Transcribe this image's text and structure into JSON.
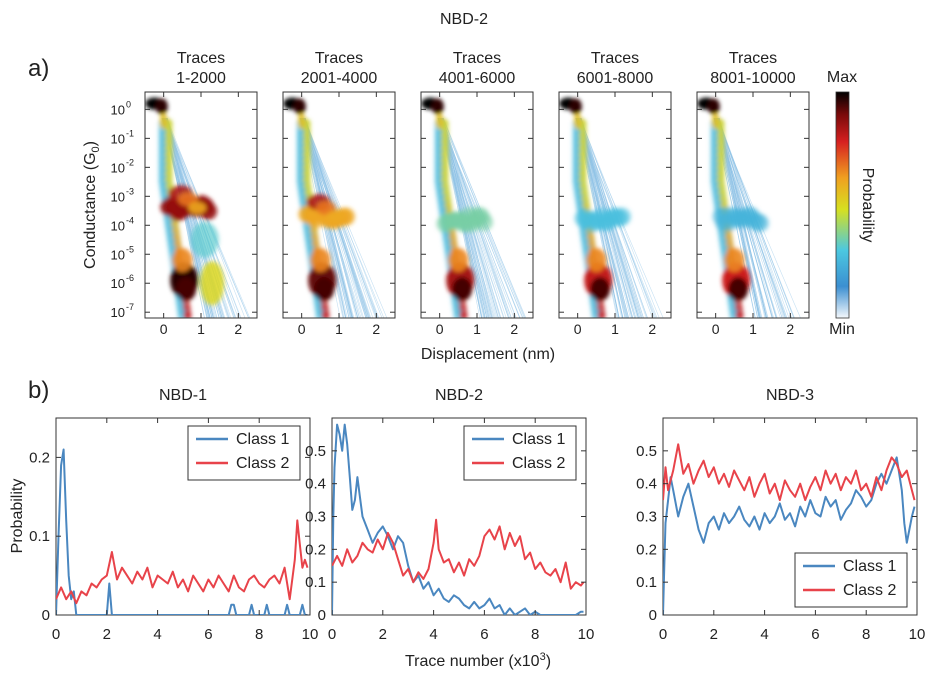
{
  "figure": {
    "top_title": "NBD-2",
    "panel_a_label": "a)",
    "panel_b_label": "b)"
  },
  "chart_data": [
    {
      "type": "heatmap",
      "ylabel_main": "Conductance (G",
      "ylabel_sub": "0",
      "ylabel_end": ")",
      "xlabel": "Displacement (nm)",
      "xlim": [
        -0.5,
        2.5
      ],
      "xticks": [
        "0",
        "1",
        "2"
      ],
      "ylim_log10": [
        -7.2,
        0.6
      ],
      "yticks": [
        {
          "base": "10",
          "exp": "0",
          "v": 0
        },
        {
          "base": "10",
          "exp": "-1",
          "v": -1
        },
        {
          "base": "10",
          "exp": "-2",
          "v": -2
        },
        {
          "base": "10",
          "exp": "-3",
          "v": -3
        },
        {
          "base": "10",
          "exp": "-4",
          "v": -4
        },
        {
          "base": "10",
          "exp": "-5",
          "v": -5
        },
        {
          "base": "10",
          "exp": "-6",
          "v": -6
        },
        {
          "base": "10",
          "exp": "-7",
          "v": -7
        }
      ],
      "colorbar": {
        "label": "Probability",
        "max_label": "Max",
        "min_label": "Min",
        "colors": [
          "#f4f8fc",
          "#3b8fd1",
          "#4cc8e0",
          "#d6e020",
          "#f0a020",
          "#d62020",
          "#7a0a0a",
          "#000000"
        ]
      },
      "panels": [
        {
          "title1": "Traces",
          "title2": "1-2000",
          "plateau_strength": 0.95,
          "plateau_level": -3.4,
          "low_cluster": 0.85
        },
        {
          "title1": "Traces",
          "title2": "2001-4000",
          "plateau_strength": 0.55,
          "plateau_level": -3.7,
          "low_cluster": 0.6
        },
        {
          "title1": "Traces",
          "title2": "4001-6000",
          "plateau_strength": 0.2,
          "plateau_level": -3.8,
          "low_cluster": 0.3
        },
        {
          "title1": "Traces",
          "title2": "6001-8000",
          "plateau_strength": 0.1,
          "plateau_level": -3.8,
          "low_cluster": 0.15
        },
        {
          "title1": "Traces",
          "title2": "8001-10000",
          "plateau_strength": 0.05,
          "plateau_level": -3.8,
          "low_cluster": 0.1
        }
      ]
    },
    {
      "type": "line",
      "title": "NBD-1",
      "ylabel": "Probability",
      "xlabel": "Trace number (x10",
      "xlabel_sup": "3",
      "xlabel_end": ")",
      "xlim": [
        0,
        10
      ],
      "ylim": [
        0,
        0.25
      ],
      "yticks": [
        0,
        0.1,
        0.2
      ],
      "ytick_labels": [
        "0",
        "0.1",
        "0.2"
      ],
      "xticks": [
        0,
        2,
        4,
        6,
        8,
        10
      ],
      "xtick_labels": [
        "0",
        "2",
        "4",
        "6",
        "8",
        "10"
      ],
      "legend_position": "top-right",
      "series": [
        {
          "name": "Class 1",
          "color": "#4a87c0",
          "x": [
            0,
            0.1,
            0.2,
            0.3,
            0.4,
            0.5,
            0.6,
            0.7,
            0.8,
            1.0,
            1.2,
            1.4,
            1.6,
            1.8,
            2.0,
            2.1,
            2.2,
            2.3,
            2.4,
            2.6,
            3.0,
            4.0,
            5.0,
            6.0,
            6.8,
            6.9,
            7.0,
            7.1,
            7.2,
            7.6,
            7.7,
            7.8,
            8.2,
            8.3,
            8.4,
            8.8,
            9.0,
            9.1,
            9.2,
            9.3,
            9.4,
            9.5,
            9.6,
            9.7,
            9.8,
            9.9
          ],
          "y": [
            0.0,
            0.1,
            0.19,
            0.21,
            0.12,
            0.05,
            0.02,
            0.03,
            0.0,
            0.0,
            0.0,
            0.0,
            0.0,
            0.0,
            0.0,
            0.04,
            0.0,
            0.0,
            0.0,
            0.0,
            0.0,
            0.0,
            0.0,
            0.0,
            0.0,
            0.013,
            0.013,
            0.0,
            0.0,
            0.0,
            0.013,
            0.0,
            0.0,
            0.013,
            0.0,
            0.0,
            0.0,
            0.013,
            0.0,
            0.0,
            0.0,
            0.0,
            0.0,
            0.013,
            0.0,
            0.0
          ]
        },
        {
          "name": "Class 2",
          "color": "#e8434a",
          "x": [
            0.0,
            0.2,
            0.4,
            0.6,
            0.8,
            1.0,
            1.2,
            1.4,
            1.6,
            1.8,
            2.0,
            2.2,
            2.4,
            2.6,
            2.8,
            3.0,
            3.2,
            3.4,
            3.6,
            3.8,
            4.0,
            4.2,
            4.4,
            4.6,
            4.8,
            5.0,
            5.2,
            5.4,
            5.6,
            5.8,
            6.0,
            6.2,
            6.4,
            6.6,
            6.8,
            7.0,
            7.2,
            7.4,
            7.6,
            7.8,
            8.0,
            8.2,
            8.4,
            8.6,
            8.8,
            9.0,
            9.2,
            9.4,
            9.5,
            9.6,
            9.7,
            9.8,
            9.9
          ],
          "y": [
            0.02,
            0.035,
            0.02,
            0.03,
            0.015,
            0.03,
            0.025,
            0.04,
            0.035,
            0.045,
            0.05,
            0.08,
            0.045,
            0.06,
            0.05,
            0.04,
            0.055,
            0.045,
            0.06,
            0.035,
            0.05,
            0.045,
            0.04,
            0.055,
            0.035,
            0.045,
            0.03,
            0.05,
            0.04,
            0.03,
            0.045,
            0.035,
            0.05,
            0.04,
            0.03,
            0.05,
            0.035,
            0.03,
            0.045,
            0.05,
            0.04,
            0.035,
            0.045,
            0.05,
            0.04,
            0.06,
            0.02,
            0.07,
            0.12,
            0.09,
            0.06,
            0.07,
            0.06
          ]
        }
      ]
    },
    {
      "type": "line",
      "title": "NBD-2",
      "xlim": [
        0,
        10
      ],
      "ylim": [
        0,
        0.6
      ],
      "yticks": [
        0,
        0.1,
        0.2,
        0.3,
        0.4,
        0.5
      ],
      "ytick_labels": [
        "0",
        "0.1",
        "0.2",
        "0.3",
        "0.4",
        "0.5"
      ],
      "xticks": [
        0,
        2,
        4,
        6,
        8,
        10
      ],
      "xtick_labels": [
        "0",
        "2",
        "4",
        "6",
        "8",
        "10"
      ],
      "legend_position": "top-right",
      "series": [
        {
          "name": "Class 1",
          "color": "#4a87c0",
          "x": [
            0,
            0.05,
            0.1,
            0.2,
            0.3,
            0.4,
            0.5,
            0.6,
            0.7,
            0.8,
            0.9,
            1.0,
            1.1,
            1.2,
            1.4,
            1.6,
            1.8,
            2.0,
            2.2,
            2.4,
            2.6,
            2.8,
            3.0,
            3.2,
            3.4,
            3.6,
            3.8,
            4.0,
            4.2,
            4.4,
            4.6,
            4.8,
            5.0,
            5.2,
            5.4,
            5.6,
            5.8,
            6.0,
            6.2,
            6.4,
            6.6,
            6.8,
            7.0,
            7.2,
            7.4,
            7.6,
            7.8,
            8.0,
            8.2,
            8.4,
            8.6,
            8.8,
            9.0,
            9.2,
            9.4,
            9.6,
            9.8,
            9.9
          ],
          "y": [
            0.0,
            0.3,
            0.45,
            0.58,
            0.55,
            0.5,
            0.58,
            0.52,
            0.42,
            0.32,
            0.35,
            0.42,
            0.36,
            0.3,
            0.26,
            0.22,
            0.25,
            0.27,
            0.24,
            0.2,
            0.24,
            0.22,
            0.15,
            0.1,
            0.12,
            0.08,
            0.1,
            0.06,
            0.08,
            0.05,
            0.04,
            0.06,
            0.05,
            0.03,
            0.02,
            0.04,
            0.02,
            0.03,
            0.05,
            0.02,
            0.03,
            0.0,
            0.02,
            0.0,
            0.01,
            0.02,
            0.0,
            0.01,
            0.0,
            0.0,
            0.0,
            0.0,
            0.0,
            0.0,
            0.0,
            0.0,
            0.01,
            0.01
          ]
        },
        {
          "name": "Class 2",
          "color": "#e8434a",
          "x": [
            0.0,
            0.2,
            0.4,
            0.6,
            0.8,
            1.0,
            1.2,
            1.4,
            1.6,
            1.8,
            2.0,
            2.2,
            2.4,
            2.6,
            2.8,
            3.0,
            3.2,
            3.4,
            3.6,
            3.8,
            4.0,
            4.1,
            4.2,
            4.4,
            4.6,
            4.8,
            5.0,
            5.2,
            5.4,
            5.6,
            5.8,
            6.0,
            6.2,
            6.4,
            6.6,
            6.8,
            7.0,
            7.2,
            7.4,
            7.6,
            7.8,
            8.0,
            8.2,
            8.4,
            8.6,
            8.8,
            9.0,
            9.2,
            9.4,
            9.6,
            9.8,
            9.9
          ],
          "y": [
            0.15,
            0.18,
            0.15,
            0.2,
            0.16,
            0.18,
            0.22,
            0.2,
            0.19,
            0.23,
            0.2,
            0.25,
            0.22,
            0.17,
            0.12,
            0.14,
            0.1,
            0.13,
            0.11,
            0.14,
            0.22,
            0.29,
            0.2,
            0.16,
            0.17,
            0.13,
            0.16,
            0.12,
            0.17,
            0.15,
            0.18,
            0.24,
            0.26,
            0.23,
            0.27,
            0.2,
            0.25,
            0.21,
            0.24,
            0.17,
            0.19,
            0.14,
            0.16,
            0.13,
            0.12,
            0.14,
            0.1,
            0.16,
            0.08,
            0.1,
            0.09,
            0.1
          ]
        }
      ]
    },
    {
      "type": "line",
      "title": "NBD-3",
      "xlim": [
        0,
        10
      ],
      "ylim": [
        0,
        0.6
      ],
      "yticks": [
        0,
        0.1,
        0.2,
        0.3,
        0.4,
        0.5
      ],
      "ytick_labels": [
        "0",
        "0.1",
        "0.2",
        "0.3",
        "0.4",
        "0.5"
      ],
      "xticks": [
        0,
        2,
        4,
        6,
        8,
        10
      ],
      "xtick_labels": [
        "0",
        "2",
        "4",
        "6",
        "8",
        "10"
      ],
      "legend_position": "bottom-right",
      "series": [
        {
          "name": "Class 1",
          "color": "#4a87c0",
          "x": [
            0,
            0.05,
            0.1,
            0.2,
            0.3,
            0.4,
            0.6,
            0.8,
            1.0,
            1.2,
            1.4,
            1.6,
            1.8,
            2.0,
            2.2,
            2.4,
            2.6,
            2.8,
            3.0,
            3.2,
            3.4,
            3.6,
            3.8,
            4.0,
            4.2,
            4.4,
            4.6,
            4.8,
            5.0,
            5.2,
            5.4,
            5.6,
            5.8,
            6.0,
            6.2,
            6.4,
            6.6,
            6.8,
            7.0,
            7.2,
            7.4,
            7.6,
            7.8,
            8.0,
            8.2,
            8.4,
            8.6,
            8.8,
            9.0,
            9.2,
            9.4,
            9.5,
            9.6,
            9.8,
            9.9
          ],
          "y": [
            0.0,
            0.15,
            0.28,
            0.35,
            0.42,
            0.38,
            0.3,
            0.36,
            0.4,
            0.33,
            0.26,
            0.22,
            0.28,
            0.3,
            0.26,
            0.31,
            0.28,
            0.3,
            0.33,
            0.29,
            0.27,
            0.3,
            0.26,
            0.31,
            0.28,
            0.3,
            0.34,
            0.29,
            0.31,
            0.27,
            0.33,
            0.3,
            0.35,
            0.31,
            0.3,
            0.36,
            0.33,
            0.35,
            0.29,
            0.32,
            0.34,
            0.38,
            0.36,
            0.33,
            0.35,
            0.4,
            0.43,
            0.4,
            0.44,
            0.48,
            0.38,
            0.28,
            0.22,
            0.3,
            0.33
          ]
        },
        {
          "name": "Class 2",
          "color": "#e8434a",
          "x": [
            0.0,
            0.1,
            0.2,
            0.4,
            0.6,
            0.8,
            1.0,
            1.2,
            1.4,
            1.6,
            1.8,
            2.0,
            2.2,
            2.4,
            2.6,
            2.8,
            3.0,
            3.2,
            3.4,
            3.6,
            3.8,
            4.0,
            4.2,
            4.4,
            4.6,
            4.8,
            5.0,
            5.2,
            5.4,
            5.6,
            5.8,
            6.0,
            6.2,
            6.4,
            6.6,
            6.8,
            7.0,
            7.2,
            7.4,
            7.6,
            7.8,
            8.0,
            8.2,
            8.4,
            8.6,
            8.8,
            9.0,
            9.2,
            9.4,
            9.6,
            9.8,
            9.9
          ],
          "y": [
            0.35,
            0.45,
            0.38,
            0.44,
            0.52,
            0.43,
            0.46,
            0.4,
            0.44,
            0.47,
            0.42,
            0.45,
            0.4,
            0.43,
            0.39,
            0.44,
            0.41,
            0.38,
            0.42,
            0.36,
            0.4,
            0.43,
            0.37,
            0.4,
            0.35,
            0.41,
            0.38,
            0.36,
            0.4,
            0.35,
            0.39,
            0.42,
            0.38,
            0.44,
            0.4,
            0.43,
            0.38,
            0.42,
            0.4,
            0.44,
            0.38,
            0.4,
            0.36,
            0.42,
            0.38,
            0.44,
            0.48,
            0.46,
            0.42,
            0.44,
            0.38,
            0.35
          ]
        }
      ]
    }
  ]
}
